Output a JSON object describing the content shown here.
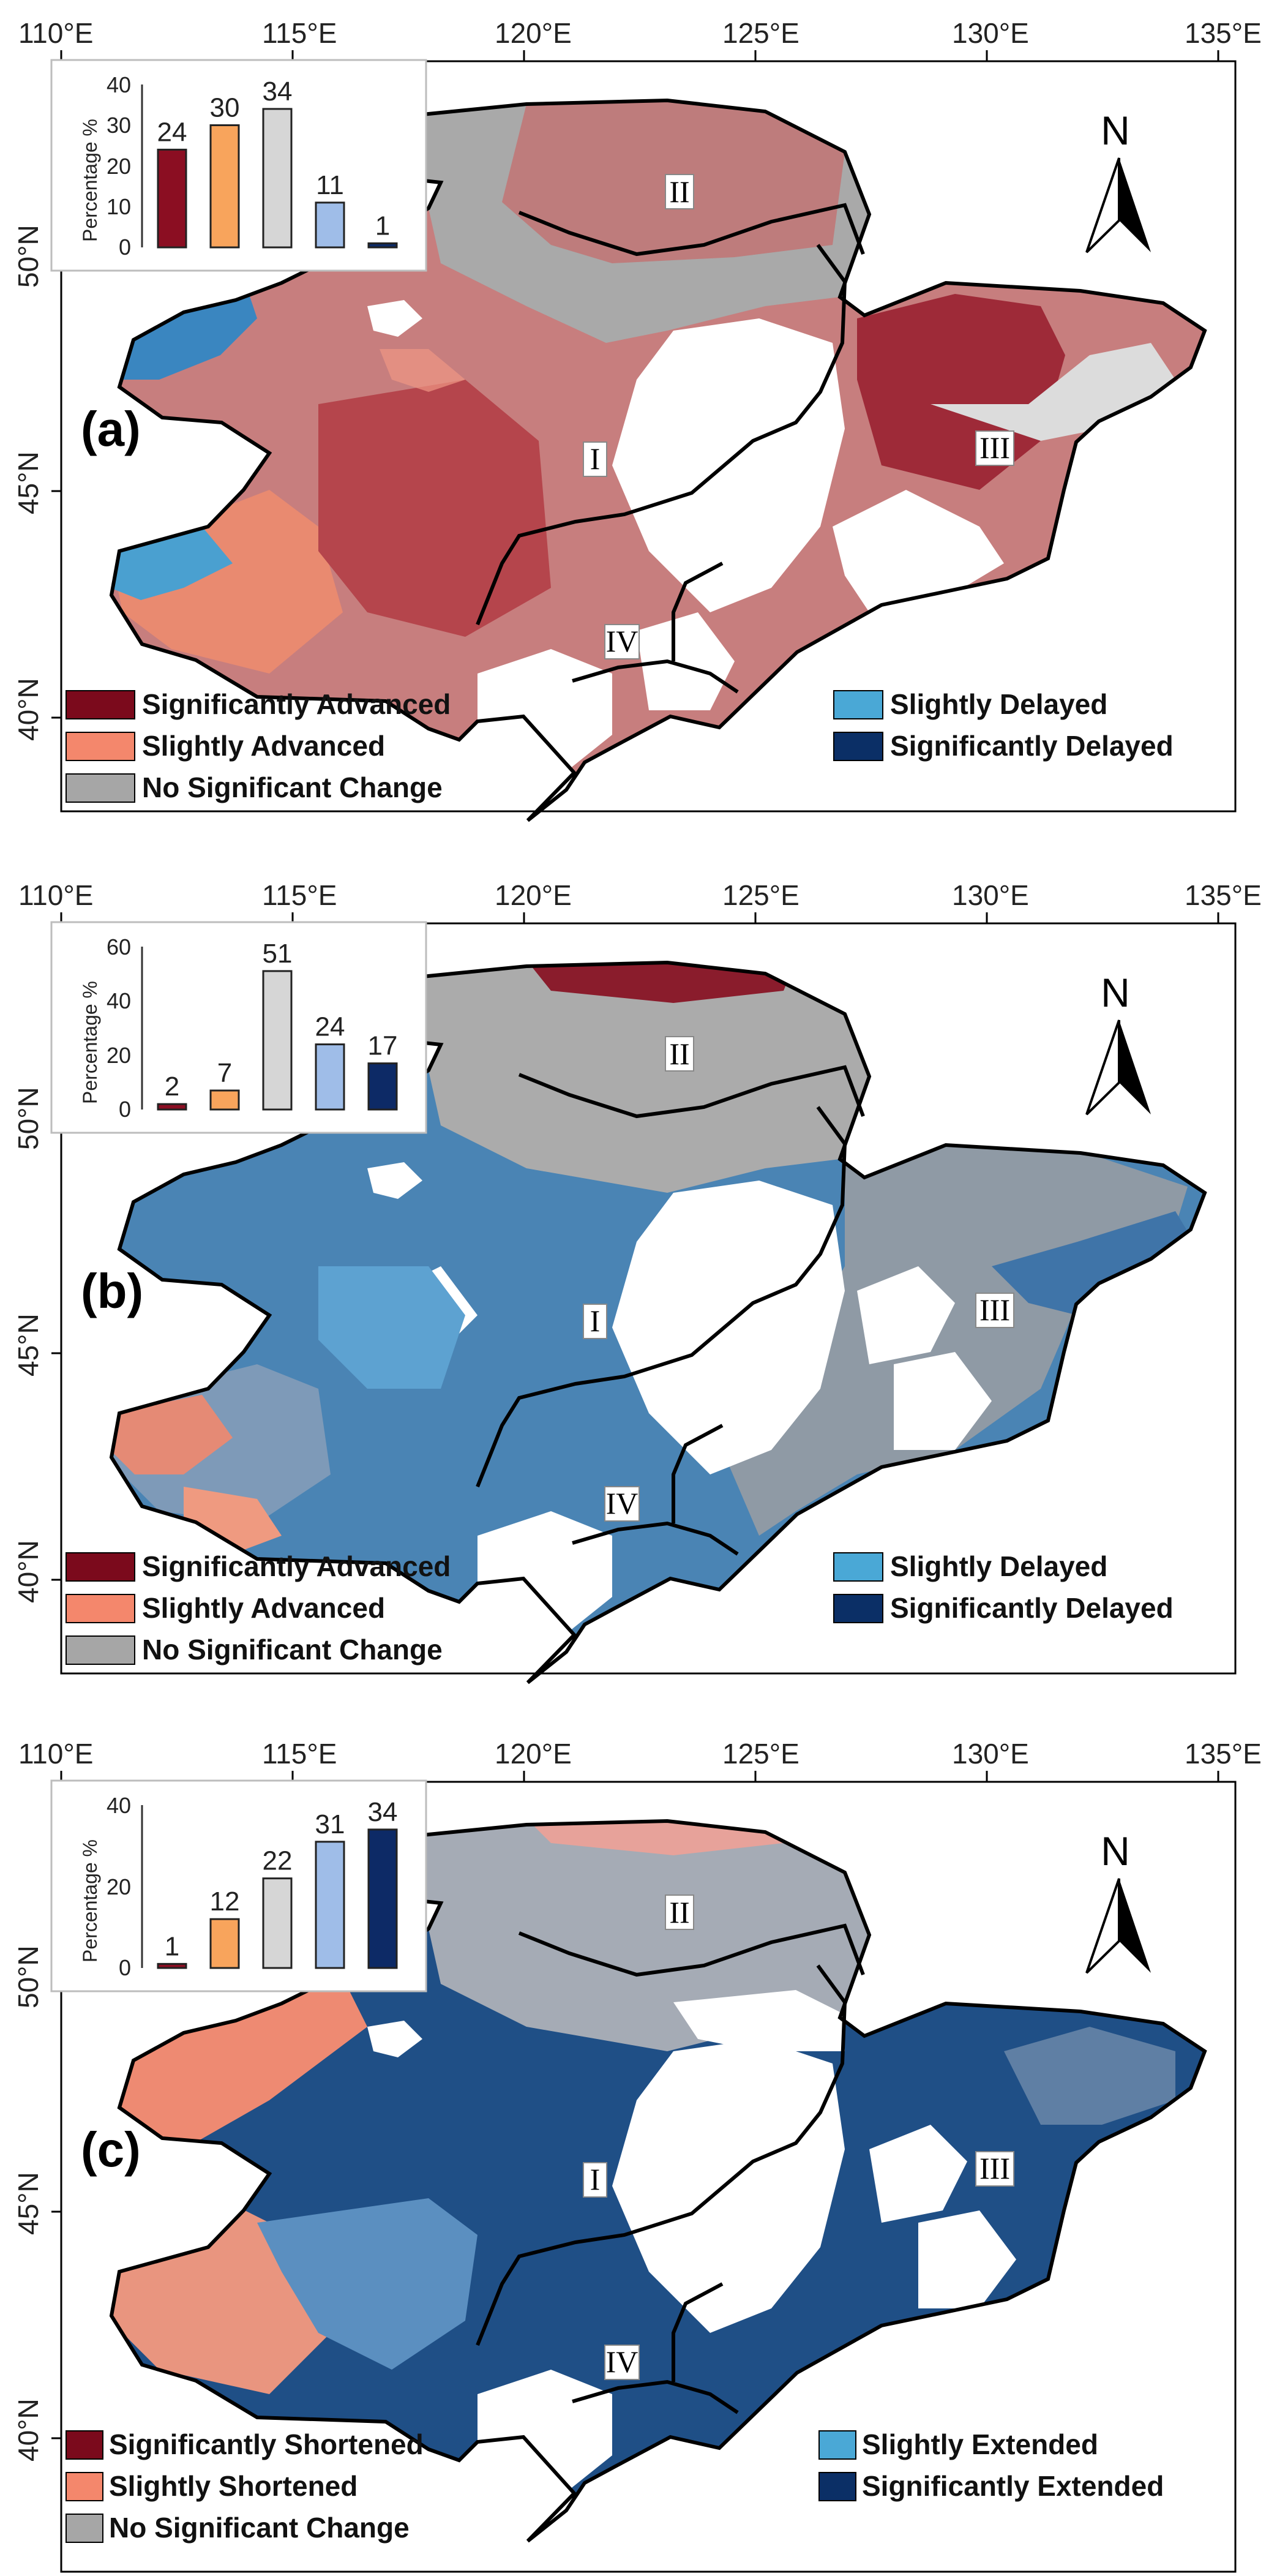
{
  "colors": {
    "sig_neg": "#7b0a1c",
    "slight_neg": "#f4876c",
    "no_change": "#a6a6a6",
    "slight_pos": "#4aa8d6",
    "sig_pos": "#0b2f66",
    "bar_sig_neg": "#8b0e22",
    "bar_slight_neg": "#f8a45c",
    "bar_no_change": "#d6d6d6",
    "bar_slight_pos": "#9fbde8",
    "bar_sig_pos": "#0d2a66"
  },
  "axes": {
    "lon_labels": [
      "110°E",
      "115°E",
      "120°E",
      "125°E",
      "130°E",
      "135°E"
    ],
    "lat_labels": [
      "50°N",
      "45°N",
      "40°N"
    ]
  },
  "common": {
    "north": "N",
    "regions": [
      "I",
      "II",
      "III",
      "IV"
    ],
    "inset_ylabel": "Percentage %"
  },
  "panels": [
    {
      "id": "a",
      "label": "(a)",
      "legend": [
        "Significantly Advanced",
        "Slightly Advanced",
        "No Significant Change",
        "Slightly Delayed",
        "Significantly Delayed"
      ],
      "inset_yticks": [
        "0",
        "10",
        "20",
        "30",
        "40"
      ],
      "inset_ymax": 40,
      "chart_data": {
        "type": "bar",
        "values": [
          24,
          30,
          34,
          11,
          1
        ],
        "ylim": [
          0,
          40
        ],
        "ylabel": "Percentage %"
      }
    },
    {
      "id": "b",
      "label": "(b)",
      "legend": [
        "Significantly Advanced",
        "Slightly Advanced",
        "No Significant Change",
        "Slightly Delayed",
        "Significantly Delayed"
      ],
      "inset_yticks": [
        "0",
        "20",
        "40",
        "60"
      ],
      "inset_ymax": 60,
      "chart_data": {
        "type": "bar",
        "values": [
          2,
          7,
          51,
          24,
          17
        ],
        "ylim": [
          0,
          60
        ],
        "ylabel": "Percentage %"
      }
    },
    {
      "id": "c",
      "label": "(c)",
      "legend": [
        "Significantly Shortened",
        "Slightly Shortened",
        "No Significant Change",
        "Slightly Extended",
        "Significantly Extended"
      ],
      "inset_yticks": [
        "0",
        "20",
        "40"
      ],
      "inset_ymax": 40,
      "chart_data": {
        "type": "bar",
        "values": [
          1,
          12,
          22,
          31,
          34
        ],
        "ylim": [
          0,
          40
        ],
        "ylabel": "Percentage %"
      }
    }
  ]
}
